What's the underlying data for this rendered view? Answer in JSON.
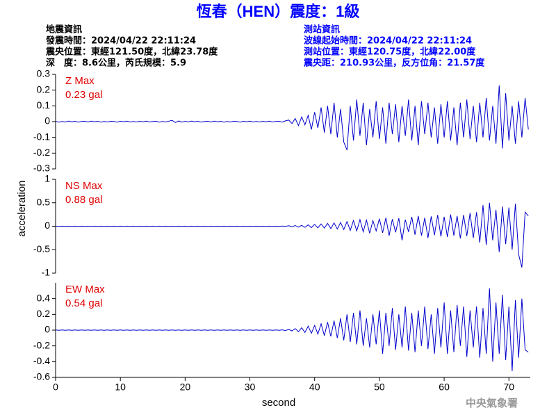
{
  "header": {
    "title": "恆春（HEN）震度：1級",
    "event_label": "地震資訊",
    "origin_time": "發震時間：2024/04/22 22:11:24",
    "epicenter": "震央位置：東經121.50度，北緯23.78度",
    "depth_magnitude": "深　度：8.6公里，芮氏規模：5.9",
    "station_label": "測站資訊",
    "wave_start": "波線起始時間：2024/04/22 22:11:24",
    "station_location": "測站位置：東經120.75度，北緯22.00度",
    "distance_azimuth": "震央距：210.93公里，反方位角：21.57度"
  },
  "footer": "中央氣象署",
  "chart_data": [
    {
      "type": "line",
      "annotation_name": "Z Max",
      "annotation_value": "0.23 gal",
      "color": "#0000cc",
      "xlim": [
        0,
        73.3
      ],
      "ylim": [
        -0.3,
        0.3
      ],
      "yticks": [
        0.3,
        0.2,
        0.1,
        0,
        -0.1,
        -0.2,
        -0.3
      ],
      "x": [
        0,
        0.5,
        1,
        1.5,
        2,
        2.5,
        3,
        3.5,
        4,
        4.5,
        5,
        5.5,
        6,
        6.5,
        7,
        7.5,
        8,
        8.5,
        9,
        9.5,
        10,
        10.5,
        11,
        11.5,
        12,
        12.5,
        13,
        13.5,
        14,
        14.5,
        15,
        15.5,
        16,
        16.5,
        17,
        17.5,
        18,
        18.5,
        19,
        19.5,
        20,
        20.5,
        21,
        21.5,
        22,
        22.5,
        23,
        23.5,
        24,
        24.5,
        25,
        25.5,
        26,
        26.5,
        27,
        27.5,
        28,
        28.5,
        29,
        29.5,
        30,
        30.5,
        31,
        31.5,
        32,
        32.5,
        33,
        33.5,
        34,
        34.5,
        35,
        35.5,
        36,
        36.5,
        37,
        37.5,
        38,
        38.5,
        39,
        39.5,
        40,
        40.5,
        41,
        41.5,
        42,
        42.5,
        43,
        43.5,
        44,
        44.5,
        45,
        45.5,
        46,
        46.5,
        47,
        47.5,
        48,
        48.5,
        49,
        49.5,
        50,
        50.5,
        51,
        51.5,
        52,
        52.5,
        53,
        53.5,
        54,
        54.5,
        55,
        55.5,
        56,
        56.5,
        57,
        57.5,
        58,
        58.5,
        59,
        59.5,
        60,
        60.5,
        61,
        61.5,
        62,
        62.5,
        63,
        63.5,
        64,
        64.5,
        65,
        65.5,
        66,
        66.5,
        67,
        67.5,
        68,
        68.5,
        69,
        69.5,
        70,
        70.5,
        71,
        71.5,
        72,
        72.5,
        73
      ],
      "values": [
        0.002,
        -0.003,
        0.001,
        -0.002,
        0.003,
        -0.001,
        0.002,
        -0.003,
        0.001,
        0.002,
        -0.002,
        0.003,
        -0.001,
        0.002,
        -0.003,
        0.001,
        -0.002,
        0.002,
        0.001,
        -0.003,
        0.002,
        -0.001,
        0.003,
        -0.002,
        0.001,
        -0.002,
        0.002,
        -0.001,
        0.003,
        -0.002,
        0.001,
        0.002,
        -0.003,
        0.001,
        -0.002,
        0.003,
        0.008,
        -0.006,
        0.004,
        -0.003,
        0.002,
        -0.002,
        0.003,
        -0.001,
        0.002,
        -0.003,
        0.001,
        0.002,
        -0.002,
        0.003,
        -0.001,
        0.002,
        -0.003,
        0.001,
        -0.002,
        0.002,
        0.001,
        -0.003,
        0.002,
        -0.001,
        0.003,
        -0.002,
        0.001,
        -0.002,
        0.002,
        -0.001,
        0.003,
        -0.002,
        0.001,
        0.002,
        -0.003,
        0.005,
        0.01,
        -0.012,
        0.02,
        -0.025,
        0.03,
        -0.02,
        0.04,
        -0.05,
        0.06,
        -0.04,
        0.09,
        -0.07,
        0.1,
        -0.08,
        0.12,
        -0.1,
        0.08,
        -0.13,
        -0.18,
        0.1,
        -0.12,
        0.14,
        -0.09,
        0.12,
        -0.15,
        0.08,
        -0.1,
        0.13,
        -0.11,
        0.09,
        -0.14,
        0.12,
        -0.08,
        0.11,
        -0.13,
        0.1,
        -0.09,
        0.14,
        -0.12,
        0.1,
        -0.15,
        0.13,
        -0.08,
        0.12,
        -0.1,
        0.09,
        -0.14,
        0.11,
        -0.1,
        0.13,
        -0.12,
        0.09,
        -0.15,
        0.12,
        -0.1,
        0.14,
        -0.11,
        0.1,
        -0.13,
        0.12,
        -0.1,
        0.15,
        -0.12,
        0.1,
        -0.14,
        0.23,
        -0.17,
        0.18,
        -0.12,
        0.1,
        -0.14,
        0.13,
        -0.1,
        0.15,
        -0.05
      ]
    },
    {
      "type": "line",
      "annotation_name": "NS Max",
      "annotation_value": "0.88 gal",
      "ylabel": "acceleration",
      "color": "#0000cc",
      "xlim": [
        0,
        73.3
      ],
      "ylim": [
        -1,
        1
      ],
      "yticks": [
        1,
        0.5,
        0,
        -0.5,
        -1
      ],
      "x": [
        0,
        0.5,
        1,
        1.5,
        2,
        2.5,
        3,
        3.5,
        4,
        4.5,
        5,
        5.5,
        6,
        6.5,
        7,
        7.5,
        8,
        8.5,
        9,
        9.5,
        10,
        10.5,
        11,
        11.5,
        12,
        12.5,
        13,
        13.5,
        14,
        14.5,
        15,
        15.5,
        16,
        16.5,
        17,
        17.5,
        18,
        18.5,
        19,
        19.5,
        20,
        20.5,
        21,
        21.5,
        22,
        22.5,
        23,
        23.5,
        24,
        24.5,
        25,
        25.5,
        26,
        26.5,
        27,
        27.5,
        28,
        28.5,
        29,
        29.5,
        30,
        30.5,
        31,
        31.5,
        32,
        32.5,
        33,
        33.5,
        34,
        34.5,
        35,
        35.5,
        36,
        36.5,
        37,
        37.5,
        38,
        38.5,
        39,
        39.5,
        40,
        40.5,
        41,
        41.5,
        42,
        42.5,
        43,
        43.5,
        44,
        44.5,
        45,
        45.5,
        46,
        46.5,
        47,
        47.5,
        48,
        48.5,
        49,
        49.5,
        50,
        50.5,
        51,
        51.5,
        52,
        52.5,
        53,
        53.5,
        54,
        54.5,
        55,
        55.5,
        56,
        56.5,
        57,
        57.5,
        58,
        58.5,
        59,
        59.5,
        60,
        60.5,
        61,
        61.5,
        62,
        62.5,
        63,
        63.5,
        64,
        64.5,
        65,
        65.5,
        66,
        66.5,
        67,
        67.5,
        68,
        68.5,
        69,
        69.5,
        70,
        70.5,
        71,
        71.5,
        72,
        72.5,
        73
      ],
      "values": [
        0.002,
        -0.002,
        0.002,
        -0.002,
        0.002,
        -0.002,
        0.002,
        -0.002,
        0.002,
        -0.002,
        0.002,
        -0.002,
        0.002,
        -0.002,
        0.002,
        -0.002,
        0.002,
        -0.002,
        0.002,
        -0.002,
        0.002,
        -0.002,
        0.002,
        -0.002,
        0.002,
        -0.002,
        0.002,
        -0.002,
        0.002,
        -0.002,
        0.002,
        -0.002,
        0.002,
        -0.002,
        0.002,
        -0.002,
        0.002,
        -0.002,
        0.002,
        -0.002,
        0.002,
        -0.002,
        0.002,
        -0.002,
        0.002,
        -0.002,
        0.002,
        -0.002,
        0.002,
        -0.002,
        0.002,
        -0.002,
        0.002,
        -0.002,
        0.002,
        -0.002,
        0.002,
        -0.002,
        0.002,
        -0.002,
        0.002,
        -0.002,
        0.002,
        -0.002,
        0.002,
        -0.002,
        0.002,
        -0.002,
        0.002,
        -0.002,
        0.003,
        -0.004,
        0.01,
        -0.01,
        0.015,
        -0.02,
        0.02,
        -0.025,
        0.03,
        -0.03,
        0.04,
        -0.035,
        0.05,
        -0.04,
        0.06,
        -0.05,
        0.07,
        -0.06,
        0.08,
        -0.07,
        0.1,
        -0.09,
        0.12,
        -0.1,
        0.14,
        -0.12,
        0.13,
        -0.15,
        0.12,
        -0.1,
        0.16,
        -0.14,
        0.18,
        -0.2,
        0.15,
        -0.13,
        0.17,
        -0.3,
        0.14,
        -0.12,
        0.2,
        -0.18,
        0.22,
        -0.2,
        0.18,
        -0.25,
        0.21,
        -0.19,
        0.24,
        -0.22,
        0.2,
        -0.23,
        0.25,
        -0.2,
        0.22,
        -0.26,
        0.24,
        -0.21,
        0.28,
        -0.25,
        0.3,
        -0.35,
        0.45,
        -0.4,
        0.5,
        -0.3,
        0.35,
        -0.55,
        0.42,
        -0.38,
        0.4,
        -0.5,
        0.48,
        -0.6,
        -0.88,
        0.3,
        0.22
      ]
    },
    {
      "type": "line",
      "annotation_name": "EW Max",
      "annotation_value": "0.54 gal",
      "xlabel": "second",
      "color": "#0000cc",
      "xlim": [
        0,
        73.3
      ],
      "ylim": [
        -0.6,
        0.6
      ],
      "yticks": [
        0.4,
        0.2,
        0,
        -0.2,
        -0.4,
        -0.6
      ],
      "xticks": [
        0,
        10,
        20,
        30,
        40,
        50,
        60,
        70
      ],
      "x": [
        0,
        0.5,
        1,
        1.5,
        2,
        2.5,
        3,
        3.5,
        4,
        4.5,
        5,
        5.5,
        6,
        6.5,
        7,
        7.5,
        8,
        8.5,
        9,
        9.5,
        10,
        10.5,
        11,
        11.5,
        12,
        12.5,
        13,
        13.5,
        14,
        14.5,
        15,
        15.5,
        16,
        16.5,
        17,
        17.5,
        18,
        18.5,
        19,
        19.5,
        20,
        20.5,
        21,
        21.5,
        22,
        22.5,
        23,
        23.5,
        24,
        24.5,
        25,
        25.5,
        26,
        26.5,
        27,
        27.5,
        28,
        28.5,
        29,
        29.5,
        30,
        30.5,
        31,
        31.5,
        32,
        32.5,
        33,
        33.5,
        34,
        34.5,
        35,
        35.5,
        36,
        36.5,
        37,
        37.5,
        38,
        38.5,
        39,
        39.5,
        40,
        40.5,
        41,
        41.5,
        42,
        42.5,
        43,
        43.5,
        44,
        44.5,
        45,
        45.5,
        46,
        46.5,
        47,
        47.5,
        48,
        48.5,
        49,
        49.5,
        50,
        50.5,
        51,
        51.5,
        52,
        52.5,
        53,
        53.5,
        54,
        54.5,
        55,
        55.5,
        56,
        56.5,
        57,
        57.5,
        58,
        58.5,
        59,
        59.5,
        60,
        60.5,
        61,
        61.5,
        62,
        62.5,
        63,
        63.5,
        64,
        64.5,
        65,
        65.5,
        66,
        66.5,
        67,
        67.5,
        68,
        68.5,
        69,
        69.5,
        70,
        70.5,
        71,
        71.5,
        72,
        72.5,
        73
      ],
      "values": [
        0.002,
        -0.002,
        0.002,
        -0.002,
        0.002,
        -0.002,
        0.002,
        -0.002,
        0.002,
        -0.002,
        0.002,
        -0.002,
        0.002,
        -0.002,
        0.002,
        -0.002,
        0.002,
        -0.002,
        0.002,
        -0.002,
        0.002,
        -0.002,
        0.002,
        -0.002,
        0.002,
        -0.002,
        0.002,
        -0.002,
        0.002,
        -0.002,
        0.002,
        -0.002,
        0.002,
        -0.002,
        0.002,
        -0.002,
        0.002,
        -0.002,
        0.002,
        -0.002,
        0.002,
        -0.002,
        0.002,
        -0.002,
        0.002,
        -0.002,
        0.002,
        -0.002,
        0.002,
        -0.002,
        0.002,
        -0.002,
        0.002,
        -0.002,
        0.002,
        -0.002,
        0.002,
        -0.002,
        0.002,
        -0.002,
        0.002,
        -0.002,
        0.002,
        -0.002,
        0.002,
        -0.002,
        0.002,
        -0.002,
        0.002,
        -0.002,
        0.003,
        -0.005,
        0.01,
        -0.01,
        0.02,
        -0.02,
        0.03,
        -0.03,
        0.05,
        -0.04,
        0.06,
        -0.05,
        0.08,
        -0.07,
        0.1,
        -0.08,
        0.12,
        -0.1,
        0.15,
        -0.13,
        0.2,
        -0.15,
        0.22,
        -0.18,
        0.25,
        -0.2,
        0.15,
        -0.22,
        0.2,
        -0.18,
        0.25,
        -0.3,
        0.22,
        -0.2,
        0.28,
        -0.25,
        0.2,
        -0.22,
        0.3,
        -0.26,
        0.22,
        -0.28,
        0.25,
        -0.2,
        0.3,
        -0.24,
        0.2,
        -0.3,
        0.28,
        -0.22,
        0.35,
        -0.3,
        0.25,
        -0.28,
        0.32,
        -0.2,
        0.3,
        -0.34,
        0.25,
        -0.22,
        0.3,
        -0.35,
        0.28,
        -0.3,
        0.53,
        -0.4,
        0.35,
        -0.3,
        0.45,
        -0.38,
        0.3,
        -0.52,
        0.38,
        -0.35,
        0.4,
        -0.25,
        -0.28
      ]
    }
  ]
}
